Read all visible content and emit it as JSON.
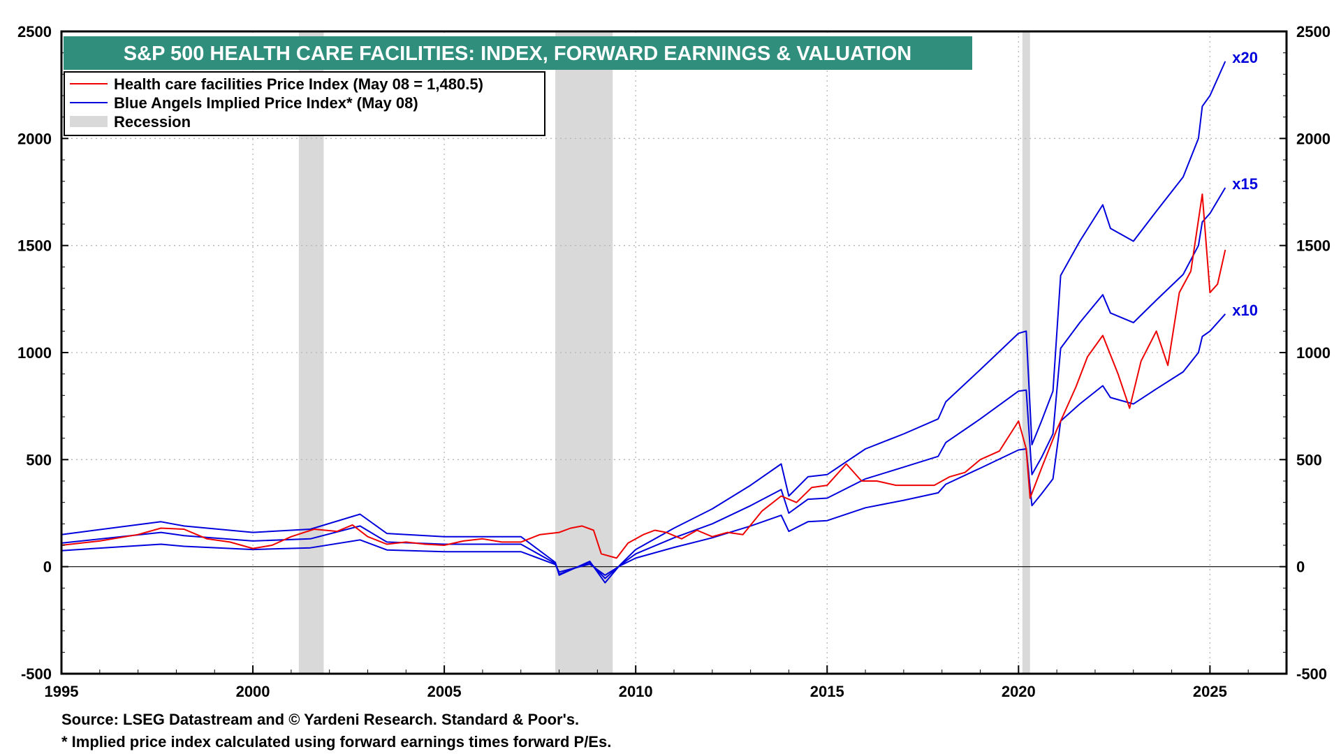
{
  "chart_data": {
    "type": "line",
    "title": "S&P 500 HEALTH CARE FACILITIES: INDEX, FORWARD EARNINGS & VALUATION",
    "xlim": [
      1995,
      2027
    ],
    "ylim": [
      -500,
      2500
    ],
    "x_ticks": [
      1995,
      2000,
      2005,
      2010,
      2015,
      2020,
      2025
    ],
    "y_ticks": [
      -500,
      0,
      500,
      1000,
      1500,
      2000,
      2500
    ],
    "grid": true,
    "legend_position": "top-left",
    "legend": [
      {
        "label": "Health care facilities Price Index (May 08 = 1,480.5)",
        "type": "line",
        "color": "#ee0000"
      },
      {
        "label": "Blue Angels Implied Price Index* (May 08)",
        "type": "line",
        "color": "#0000dd"
      },
      {
        "label": "Recession",
        "type": "band",
        "color": "#d9d9d9"
      }
    ],
    "recessions": [
      [
        2001.2,
        2001.85
      ],
      [
        2007.9,
        2009.4
      ],
      [
        2020.1,
        2020.3
      ]
    ],
    "series": [
      {
        "name": "Health care facilities Price Index",
        "color": "#ee0000",
        "points": [
          [
            1995.0,
            100
          ],
          [
            1996.0,
            120
          ],
          [
            1997.0,
            150
          ],
          [
            1997.6,
            180
          ],
          [
            1998.2,
            175
          ],
          [
            1998.8,
            130
          ],
          [
            1999.4,
            115
          ],
          [
            2000.0,
            85
          ],
          [
            2000.5,
            100
          ],
          [
            2001.0,
            140
          ],
          [
            2001.6,
            175
          ],
          [
            2002.2,
            165
          ],
          [
            2002.6,
            195
          ],
          [
            2003.0,
            140
          ],
          [
            2003.5,
            105
          ],
          [
            2004.0,
            115
          ],
          [
            2004.5,
            105
          ],
          [
            2005.0,
            100
          ],
          [
            2005.5,
            120
          ],
          [
            2006.0,
            130
          ],
          [
            2006.5,
            115
          ],
          [
            2007.0,
            115
          ],
          [
            2007.5,
            150
          ],
          [
            2008.0,
            160
          ],
          [
            2008.3,
            180
          ],
          [
            2008.6,
            190
          ],
          [
            2008.9,
            170
          ],
          [
            2009.1,
            60
          ],
          [
            2009.5,
            40
          ],
          [
            2009.8,
            110
          ],
          [
            2010.2,
            150
          ],
          [
            2010.5,
            170
          ],
          [
            2010.8,
            160
          ],
          [
            2011.2,
            130
          ],
          [
            2011.6,
            170
          ],
          [
            2012.0,
            140
          ],
          [
            2012.4,
            160
          ],
          [
            2012.8,
            150
          ],
          [
            2013.3,
            260
          ],
          [
            2013.8,
            330
          ],
          [
            2014.2,
            300
          ],
          [
            2014.6,
            370
          ],
          [
            2015.0,
            380
          ],
          [
            2015.5,
            480
          ],
          [
            2015.9,
            400
          ],
          [
            2016.3,
            400
          ],
          [
            2016.8,
            380
          ],
          [
            2017.3,
            380
          ],
          [
            2017.8,
            380
          ],
          [
            2018.2,
            420
          ],
          [
            2018.6,
            440
          ],
          [
            2019.0,
            500
          ],
          [
            2019.5,
            540
          ],
          [
            2020.0,
            680
          ],
          [
            2020.2,
            550
          ],
          [
            2020.3,
            320
          ],
          [
            2020.6,
            460
          ],
          [
            2021.0,
            640
          ],
          [
            2021.5,
            840
          ],
          [
            2021.8,
            980
          ],
          [
            2022.2,
            1080
          ],
          [
            2022.6,
            900
          ],
          [
            2022.9,
            740
          ],
          [
            2023.2,
            960
          ],
          [
            2023.6,
            1100
          ],
          [
            2023.9,
            940
          ],
          [
            2024.2,
            1280
          ],
          [
            2024.5,
            1380
          ],
          [
            2024.8,
            1740
          ],
          [
            2025.0,
            1280
          ],
          [
            2025.2,
            1320
          ],
          [
            2025.4,
            1480
          ]
        ]
      },
      {
        "name": "Blue Angels Implied Price Index x20",
        "color": "#0000dd",
        "end_label": "x20",
        "points": [
          [
            1995.0,
            150
          ],
          [
            1997.6,
            210
          ],
          [
            1998.2,
            190
          ],
          [
            2000.0,
            160
          ],
          [
            2001.5,
            175
          ],
          [
            2002.8,
            245
          ],
          [
            2003.5,
            155
          ],
          [
            2005.0,
            140
          ],
          [
            2007.0,
            140
          ],
          [
            2007.9,
            20
          ],
          [
            2008.0,
            -40
          ],
          [
            2008.8,
            25
          ],
          [
            2009.2,
            -75
          ],
          [
            2009.6,
            10
          ],
          [
            2010.0,
            80
          ],
          [
            2011.0,
            180
          ],
          [
            2012.0,
            270
          ],
          [
            2013.0,
            380
          ],
          [
            2013.8,
            480
          ],
          [
            2014.0,
            330
          ],
          [
            2014.5,
            420
          ],
          [
            2015.0,
            430
          ],
          [
            2016.0,
            550
          ],
          [
            2017.0,
            620
          ],
          [
            2017.9,
            690
          ],
          [
            2018.1,
            770
          ],
          [
            2019.0,
            920
          ],
          [
            2020.0,
            1090
          ],
          [
            2020.2,
            1100
          ],
          [
            2020.35,
            570
          ],
          [
            2020.6,
            680
          ],
          [
            2020.9,
            820
          ],
          [
            2021.1,
            1360
          ],
          [
            2021.6,
            1520
          ],
          [
            2022.2,
            1690
          ],
          [
            2022.4,
            1580
          ],
          [
            2023.0,
            1520
          ],
          [
            2023.6,
            1660
          ],
          [
            2024.3,
            1820
          ],
          [
            2024.7,
            2000
          ],
          [
            2024.8,
            2150
          ],
          [
            2025.0,
            2200
          ],
          [
            2025.4,
            2360
          ]
        ]
      },
      {
        "name": "Blue Angels Implied Price Index x15",
        "color": "#0000dd",
        "end_label": "x15",
        "points": [
          [
            1995.0,
            110
          ],
          [
            1997.6,
            160
          ],
          [
            1998.2,
            145
          ],
          [
            2000.0,
            120
          ],
          [
            2001.5,
            130
          ],
          [
            2002.8,
            190
          ],
          [
            2003.5,
            115
          ],
          [
            2005.0,
            105
          ],
          [
            2007.0,
            105
          ],
          [
            2007.9,
            15
          ],
          [
            2008.0,
            -35
          ],
          [
            2008.8,
            20
          ],
          [
            2009.2,
            -55
          ],
          [
            2009.6,
            8
          ],
          [
            2010.0,
            60
          ],
          [
            2011.0,
            135
          ],
          [
            2012.0,
            200
          ],
          [
            2013.0,
            285
          ],
          [
            2013.8,
            360
          ],
          [
            2014.0,
            250
          ],
          [
            2014.5,
            315
          ],
          [
            2015.0,
            320
          ],
          [
            2016.0,
            410
          ],
          [
            2017.0,
            465
          ],
          [
            2017.9,
            515
          ],
          [
            2018.1,
            580
          ],
          [
            2019.0,
            690
          ],
          [
            2020.0,
            820
          ],
          [
            2020.2,
            825
          ],
          [
            2020.35,
            430
          ],
          [
            2020.6,
            510
          ],
          [
            2020.9,
            620
          ],
          [
            2021.1,
            1020
          ],
          [
            2021.6,
            1140
          ],
          [
            2022.2,
            1270
          ],
          [
            2022.4,
            1185
          ],
          [
            2023.0,
            1140
          ],
          [
            2023.6,
            1245
          ],
          [
            2024.3,
            1365
          ],
          [
            2024.7,
            1500
          ],
          [
            2024.8,
            1610
          ],
          [
            2025.0,
            1650
          ],
          [
            2025.4,
            1770
          ]
        ]
      },
      {
        "name": "Blue Angels Implied Price Index x10",
        "color": "#0000dd",
        "end_label": "x10",
        "points": [
          [
            1995.0,
            75
          ],
          [
            1997.6,
            105
          ],
          [
            1998.2,
            95
          ],
          [
            2000.0,
            80
          ],
          [
            2001.5,
            88
          ],
          [
            2002.8,
            125
          ],
          [
            2003.5,
            78
          ],
          [
            2005.0,
            70
          ],
          [
            2007.0,
            70
          ],
          [
            2007.9,
            10
          ],
          [
            2008.0,
            -25
          ],
          [
            2008.8,
            12
          ],
          [
            2009.2,
            -40
          ],
          [
            2009.6,
            5
          ],
          [
            2010.0,
            40
          ],
          [
            2011.0,
            90
          ],
          [
            2012.0,
            135
          ],
          [
            2013.0,
            190
          ],
          [
            2013.8,
            240
          ],
          [
            2014.0,
            165
          ],
          [
            2014.5,
            210
          ],
          [
            2015.0,
            215
          ],
          [
            2016.0,
            275
          ],
          [
            2017.0,
            310
          ],
          [
            2017.9,
            345
          ],
          [
            2018.1,
            385
          ],
          [
            2019.0,
            460
          ],
          [
            2020.0,
            545
          ],
          [
            2020.2,
            550
          ],
          [
            2020.35,
            285
          ],
          [
            2020.6,
            340
          ],
          [
            2020.9,
            410
          ],
          [
            2021.1,
            680
          ],
          [
            2021.6,
            760
          ],
          [
            2022.2,
            845
          ],
          [
            2022.4,
            790
          ],
          [
            2023.0,
            760
          ],
          [
            2023.6,
            830
          ],
          [
            2024.3,
            910
          ],
          [
            2024.7,
            1000
          ],
          [
            2024.8,
            1075
          ],
          [
            2025.0,
            1100
          ],
          [
            2025.4,
            1180
          ]
        ]
      }
    ],
    "footnotes": [
      "Source: LSEG Datastream and © Yardeni Research. Standard & Poor's.",
      "* Implied price index calculated using forward earnings times forward P/Es."
    ]
  }
}
